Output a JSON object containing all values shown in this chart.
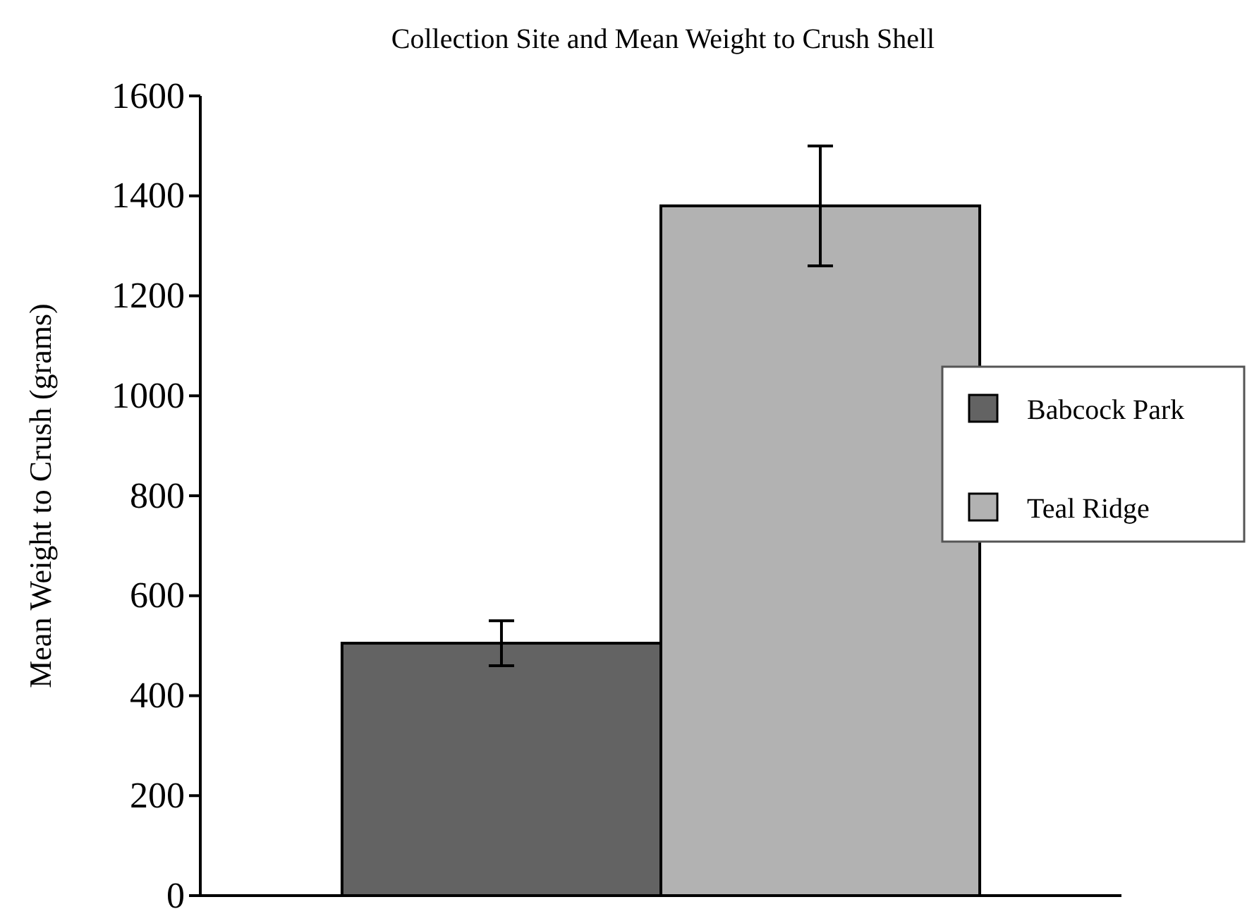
{
  "chart_data": {
    "type": "bar",
    "title": "Collection Site and Mean Weight to Crush Shell",
    "ylabel": "Mean Weight to Crush (grams)",
    "categories": [
      null
    ],
    "series": [
      {
        "name": "Babcock Park",
        "color": "#636363",
        "values": [
          505
        ],
        "errors": [
          45
        ]
      },
      {
        "name": "Teal Ridge",
        "color": "#b2b2b2",
        "values": [
          1380
        ],
        "errors": [
          120
        ]
      }
    ],
    "ylim": [
      0,
      1600
    ],
    "yticks": [
      0,
      200,
      400,
      600,
      800,
      1000,
      1200,
      1400,
      1600
    ],
    "grid": false,
    "legend": "right"
  }
}
